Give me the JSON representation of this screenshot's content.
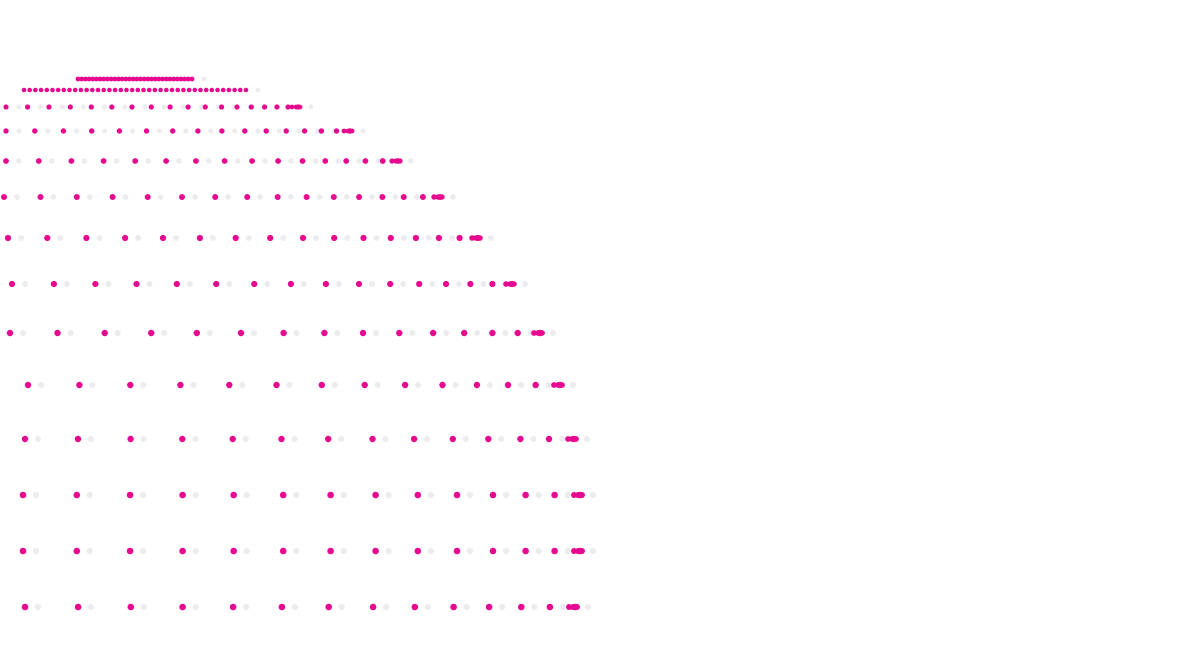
{
  "colors": {
    "background": "#ffffff",
    "dot": "#e6088f",
    "ghost_dot": "#ececf0"
  },
  "graphic": {
    "icon": "dotted-globe-icon"
  }
}
